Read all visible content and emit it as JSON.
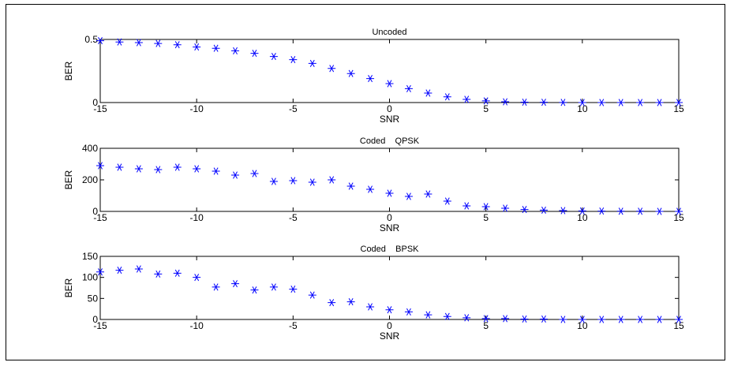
{
  "chart_data": [
    {
      "type": "scatter",
      "title": "Uncoded",
      "xlabel": "SNR",
      "ylabel": "BER",
      "xlim": [
        -15,
        15
      ],
      "ylim": [
        0,
        0.5
      ],
      "xticks": [
        -15,
        -10,
        -5,
        0,
        5,
        10,
        15
      ],
      "yticks": [
        0,
        0.5
      ],
      "ytick_labels": [
        "0",
        "0.5"
      ],
      "marker": "asterisk",
      "marker_color": "#0000ff",
      "grid": false,
      "series": [
        {
          "x": [
            -15,
            -14,
            -13,
            -12,
            -11,
            -10,
            -9,
            -8,
            -7,
            -6,
            -5,
            -4,
            -3,
            -2,
            -1,
            0,
            1,
            2,
            3,
            4,
            5,
            6,
            7,
            8,
            9,
            10,
            11,
            12,
            13,
            14,
            15
          ],
          "y": [
            0.49,
            0.48,
            0.475,
            0.468,
            0.458,
            0.44,
            0.43,
            0.41,
            0.39,
            0.365,
            0.34,
            0.31,
            0.27,
            0.23,
            0.19,
            0.15,
            0.11,
            0.075,
            0.045,
            0.025,
            0.013,
            0.006,
            0.003,
            0.002,
            0.001,
            0,
            0,
            0,
            0,
            0,
            0
          ]
        }
      ]
    },
    {
      "type": "scatter",
      "title": "Coded    QPSK",
      "xlabel": "SNR",
      "ylabel": "BER",
      "xlim": [
        -15,
        15
      ],
      "ylim": [
        0,
        400
      ],
      "xticks": [
        -15,
        -10,
        -5,
        0,
        5,
        10,
        15
      ],
      "yticks": [
        0,
        200,
        400
      ],
      "ytick_labels": [
        "0",
        "200",
        "400"
      ],
      "marker": "asterisk",
      "marker_color": "#0000ff",
      "grid": false,
      "series": [
        {
          "x": [
            -15,
            -14,
            -13,
            -12,
            -11,
            -10,
            -9,
            -8,
            -7,
            -6,
            -5,
            -4,
            -3,
            -2,
            -1,
            0,
            1,
            2,
            3,
            4,
            5,
            6,
            7,
            8,
            9,
            10,
            11,
            12,
            13,
            14,
            15
          ],
          "y": [
            290,
            280,
            270,
            265,
            280,
            270,
            255,
            230,
            240,
            190,
            195,
            185,
            200,
            160,
            140,
            115,
            95,
            110,
            65,
            35,
            30,
            20,
            12,
            8,
            5,
            3,
            2,
            1,
            1,
            0,
            0
          ]
        }
      ]
    },
    {
      "type": "scatter",
      "title": "Coded    BPSK",
      "xlabel": "SNR",
      "ylabel": "BER",
      "xlim": [
        -15,
        15
      ],
      "ylim": [
        0,
        150
      ],
      "xticks": [
        -15,
        -10,
        -5,
        0,
        5,
        10,
        15
      ],
      "yticks": [
        0,
        50,
        100,
        150
      ],
      "ytick_labels": [
        "0",
        "50",
        "100",
        "150"
      ],
      "marker": "asterisk",
      "marker_color": "#0000ff",
      "grid": false,
      "series": [
        {
          "x": [
            -15,
            -14,
            -13,
            -12,
            -11,
            -10,
            -9,
            -8,
            -7,
            -6,
            -5,
            -4,
            -3,
            -2,
            -1,
            0,
            1,
            2,
            3,
            4,
            5,
            6,
            7,
            8,
            9,
            10,
            11,
            12,
            13,
            14,
            15
          ],
          "y": [
            113,
            117,
            120,
            108,
            110,
            100,
            77,
            85,
            70,
            77,
            72,
            58,
            40,
            42,
            30,
            23,
            18,
            11,
            7,
            4,
            2,
            2,
            1,
            1,
            0,
            0,
            0,
            0,
            0,
            0,
            0
          ]
        }
      ]
    }
  ]
}
